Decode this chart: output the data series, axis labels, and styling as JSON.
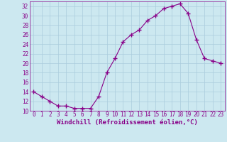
{
  "x": [
    0,
    1,
    2,
    3,
    4,
    5,
    6,
    7,
    8,
    9,
    10,
    11,
    12,
    13,
    14,
    15,
    16,
    17,
    18,
    19,
    20,
    21,
    22,
    23
  ],
  "y": [
    14,
    13,
    12,
    11,
    11,
    10.5,
    10.5,
    10.5,
    13,
    18,
    21,
    24.5,
    26,
    27,
    29,
    30,
    31.5,
    32,
    32.5,
    30.5,
    25,
    21,
    20.5,
    20
  ],
  "line_color": "#880088",
  "marker": "+",
  "marker_size": 4,
  "marker_lw": 1.0,
  "bg_color": "#cce8f0",
  "grid_color": "#aaccdd",
  "label_color": "#880088",
  "xlabel": "Windchill (Refroidissement éolien,°C)",
  "ylim": [
    10,
    33
  ],
  "yticks": [
    10,
    12,
    14,
    16,
    18,
    20,
    22,
    24,
    26,
    28,
    30,
    32
  ],
  "xlim": [
    -0.5,
    23.5
  ],
  "xticks": [
    0,
    1,
    2,
    3,
    4,
    5,
    6,
    7,
    8,
    9,
    10,
    11,
    12,
    13,
    14,
    15,
    16,
    17,
    18,
    19,
    20,
    21,
    22,
    23
  ],
  "font_size": 5.5,
  "xlabel_size": 6.5,
  "lw": 0.8
}
